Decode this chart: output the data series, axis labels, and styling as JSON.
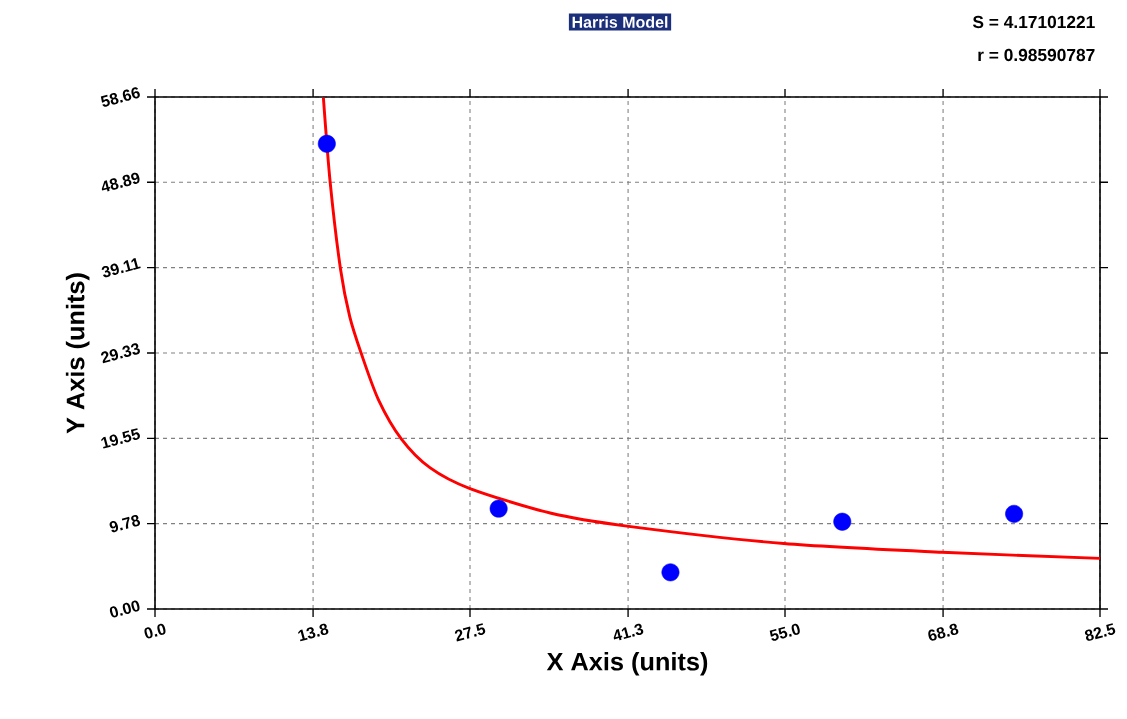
{
  "chart_data": {
    "type": "scatter",
    "title": "Harris Model",
    "xlabel": "X Axis (units)",
    "ylabel": "Y Axis (units)",
    "annotations": [
      "S = 4.17101221",
      "r = 0.98590787"
    ],
    "xlim": [
      0,
      82.5
    ],
    "ylim": [
      0,
      58.66
    ],
    "xticks": [
      {
        "value": 0,
        "label": "0.0"
      },
      13.8,
      27.5,
      41.3,
      {
        "value": 55,
        "label": "55.0"
      },
      68.8,
      82.5
    ],
    "yticks": [
      {
        "value": 0,
        "label": "0.00"
      },
      9.78,
      19.55,
      29.33,
      39.11,
      48.89,
      58.66
    ],
    "grid": true,
    "series": [
      {
        "color": "#0000ff",
        "marker": "circle",
        "x": [
          15,
          30,
          45,
          60,
          75
        ],
        "values": [
          53.3,
          11.5,
          4.2,
          10.0,
          10.9
        ]
      },
      {
        "type": "line",
        "color": "#ff0000",
        "marker": "none",
        "x": [
          14.7,
          15.3,
          16.2,
          17.0,
          18.0,
          19.5,
          21.5,
          24.0,
          27.5,
          34.5,
          41.2,
          54.9,
          68.7,
          82.5
        ],
        "values": [
          58.6,
          48.8,
          38.9,
          33.5,
          29.3,
          24.0,
          19.5,
          16.2,
          13.8,
          11.0,
          9.5,
          7.5,
          6.5,
          5.8
        ]
      }
    ]
  }
}
